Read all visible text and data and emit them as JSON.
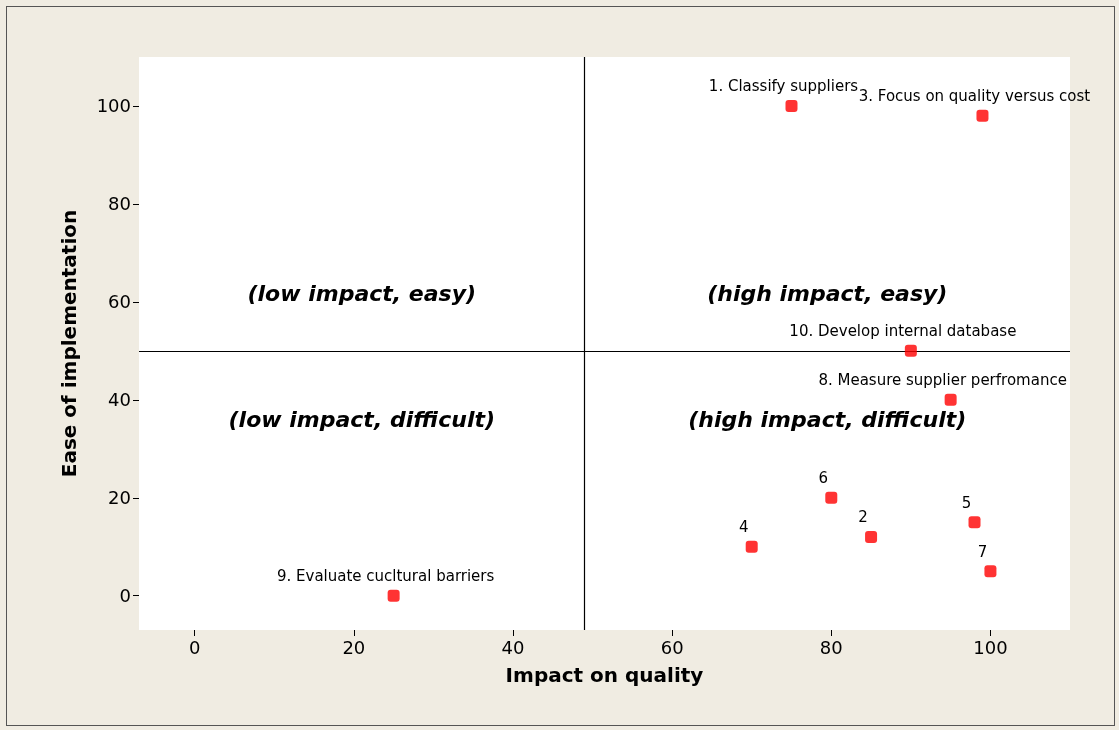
{
  "chart_data": {
    "type": "scatter",
    "xlabel": "Impact on quality",
    "ylabel": "Ease of implementation",
    "x": [
      75,
      85,
      99,
      70,
      98,
      80,
      100,
      95,
      25,
      90
    ],
    "values": [
      100,
      12,
      98,
      10,
      15,
      20,
      5,
      40,
      0,
      50
    ],
    "color": "#ff0000",
    "marker": "square",
    "grid": false,
    "xlim": [
      -7,
      110
    ],
    "ylim": [
      -7,
      110
    ],
    "xticks": [
      0,
      20,
      40,
      60,
      80,
      100
    ],
    "yticks": [
      0,
      20,
      40,
      60,
      80,
      100
    ],
    "ref_lines": [
      {
        "axis": "x",
        "value": 49,
        "color": "#000000"
      },
      {
        "axis": "y",
        "value": 50,
        "color": "#000000"
      }
    ],
    "annotations": [
      {
        "text": "1. Classify suppliers",
        "x": 75,
        "y": 100
      },
      {
        "text": "2",
        "x": 85,
        "y": 12
      },
      {
        "text": "3. Focus on quality versus cost",
        "x": 99,
        "y": 98
      },
      {
        "text": "4",
        "x": 70,
        "y": 10
      },
      {
        "text": "5",
        "x": 98,
        "y": 15
      },
      {
        "text": "6",
        "x": 80,
        "y": 20
      },
      {
        "text": "7",
        "x": 100,
        "y": 5
      },
      {
        "text": "8. Measure supplier perfromance",
        "x": 95,
        "y": 40
      },
      {
        "text": "9. Evaluate cucltural barriers",
        "x": 25,
        "y": 0
      },
      {
        "text": "10. Develop internal database",
        "x": 90,
        "y": 50
      },
      "(low impact, easy)",
      "(high impact, easy)",
      "(low impact, difficult)",
      "(high impact, difficult)"
    ]
  }
}
